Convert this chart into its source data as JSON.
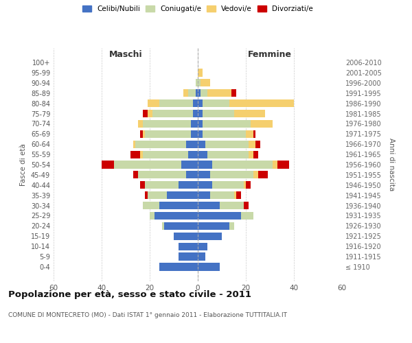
{
  "age_groups": [
    "100+",
    "95-99",
    "90-94",
    "85-89",
    "80-84",
    "75-79",
    "70-74",
    "65-69",
    "60-64",
    "55-59",
    "50-54",
    "45-49",
    "40-44",
    "35-39",
    "30-34",
    "25-29",
    "20-24",
    "15-19",
    "10-14",
    "5-9",
    "0-4"
  ],
  "birth_years": [
    "≤ 1910",
    "1911-1915",
    "1916-1920",
    "1921-1925",
    "1926-1930",
    "1931-1935",
    "1936-1940",
    "1941-1945",
    "1946-1950",
    "1951-1955",
    "1956-1960",
    "1961-1965",
    "1966-1970",
    "1971-1975",
    "1976-1980",
    "1981-1985",
    "1986-1990",
    "1991-1995",
    "1996-2000",
    "2001-2005",
    "2006-2010"
  ],
  "maschi": {
    "celibi": [
      0,
      0,
      0,
      1,
      2,
      2,
      3,
      3,
      5,
      4,
      7,
      5,
      8,
      13,
      16,
      18,
      14,
      10,
      8,
      8,
      16
    ],
    "coniugati": [
      0,
      0,
      1,
      3,
      14,
      17,
      20,
      19,
      21,
      19,
      28,
      20,
      14,
      8,
      7,
      2,
      1,
      0,
      0,
      0,
      0
    ],
    "vedovi": [
      0,
      0,
      0,
      2,
      5,
      2,
      2,
      1,
      1,
      1,
      0,
      0,
      0,
      0,
      0,
      0,
      0,
      0,
      0,
      0,
      0
    ],
    "divorziati": [
      0,
      0,
      0,
      0,
      0,
      2,
      0,
      1,
      0,
      4,
      5,
      2,
      2,
      1,
      0,
      0,
      0,
      0,
      0,
      0,
      0
    ]
  },
  "femmine": {
    "nubili": [
      0,
      0,
      0,
      1,
      2,
      2,
      2,
      2,
      3,
      4,
      6,
      5,
      6,
      5,
      9,
      18,
      13,
      10,
      4,
      3,
      9
    ],
    "coniugate": [
      0,
      0,
      1,
      3,
      11,
      13,
      20,
      18,
      18,
      17,
      25,
      18,
      13,
      10,
      10,
      5,
      2,
      0,
      0,
      0,
      0
    ],
    "vedove": [
      0,
      2,
      4,
      10,
      27,
      13,
      9,
      3,
      3,
      2,
      2,
      2,
      1,
      1,
      0,
      0,
      0,
      0,
      0,
      0,
      0
    ],
    "divorziate": [
      0,
      0,
      0,
      2,
      0,
      0,
      0,
      1,
      2,
      2,
      5,
      4,
      2,
      2,
      2,
      0,
      0,
      0,
      0,
      0,
      0
    ]
  },
  "colors": {
    "celibi": "#4472C4",
    "coniugati": "#C8D9A8",
    "vedovi": "#F5CF6E",
    "divorziati": "#CC0000"
  },
  "xlim": 60,
  "title": "Popolazione per età, sesso e stato civile - 2011",
  "subtitle": "COMUNE DI MONTECRETO (MO) - Dati ISTAT 1° gennaio 2011 - Elaborazione TUTTITALIA.IT",
  "xlabel_left": "Maschi",
  "xlabel_right": "Femmine",
  "ylabel_left": "Fasce di età",
  "ylabel_right": "Anni di nascita",
  "legend_labels": [
    "Celibi/Nubili",
    "Coniugati/e",
    "Vedovi/e",
    "Divorziati/e"
  ],
  "bg_color": "#ffffff",
  "grid_color": "#cccccc"
}
